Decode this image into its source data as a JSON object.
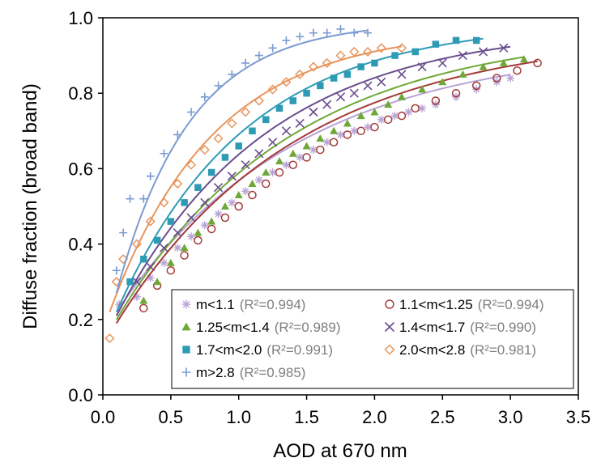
{
  "chart_data": {
    "type": "scatter",
    "title": "",
    "xlabel": "AOD at 670 nm",
    "ylabel": "Diffuse fraction (broad band)",
    "xlim": [
      0.0,
      3.5
    ],
    "ylim": [
      0.0,
      1.0
    ],
    "xticks": [
      "0.0",
      "0.5",
      "1.0",
      "1.5",
      "2.0",
      "2.5",
      "3.0",
      "3.5"
    ],
    "yticks": [
      "0.0",
      "0.2",
      "0.4",
      "0.6",
      "0.8",
      "1.0"
    ],
    "grid": false,
    "legend_position": "bottom-right",
    "series": [
      {
        "name": "m<1.1",
        "r2": "(R²=0.994)",
        "marker": "asterisk",
        "color": "#b8a3d6",
        "fit": {
          "x0": 0.1,
          "x1": 3.0,
          "y0": 0.22,
          "ymax": 0.93,
          "k": 0.75
        },
        "points": [
          [
            0.12,
            0.24
          ],
          [
            0.25,
            0.26
          ],
          [
            0.35,
            0.31
          ],
          [
            0.45,
            0.35
          ],
          [
            0.55,
            0.39
          ],
          [
            0.65,
            0.42
          ],
          [
            0.75,
            0.45
          ],
          [
            0.85,
            0.48
          ],
          [
            0.95,
            0.51
          ],
          [
            1.05,
            0.54
          ],
          [
            1.15,
            0.57
          ],
          [
            1.25,
            0.59
          ],
          [
            1.35,
            0.61
          ],
          [
            1.45,
            0.63
          ],
          [
            1.55,
            0.65
          ],
          [
            1.65,
            0.67
          ],
          [
            1.75,
            0.69
          ],
          [
            1.85,
            0.7
          ],
          [
            1.95,
            0.71
          ],
          [
            2.05,
            0.73
          ],
          [
            2.15,
            0.74
          ],
          [
            2.25,
            0.75
          ],
          [
            2.35,
            0.76
          ],
          [
            2.45,
            0.77
          ],
          [
            2.6,
            0.79
          ],
          [
            2.75,
            0.81
          ],
          [
            2.9,
            0.83
          ],
          [
            3.0,
            0.84
          ]
        ]
      },
      {
        "name": "1.1<m<1.25",
        "r2": "(R²=0.994)",
        "marker": "circle",
        "color": "#a33a37",
        "fit": {
          "x0": 0.1,
          "x1": 3.2,
          "y0": 0.19,
          "ymax": 0.96,
          "k": 0.75
        },
        "points": [
          [
            0.3,
            0.23
          ],
          [
            0.4,
            0.29
          ],
          [
            0.5,
            0.33
          ],
          [
            0.6,
            0.37
          ],
          [
            0.7,
            0.41
          ],
          [
            0.8,
            0.44
          ],
          [
            0.9,
            0.47
          ],
          [
            1.0,
            0.5
          ],
          [
            1.1,
            0.53
          ],
          [
            1.2,
            0.56
          ],
          [
            1.3,
            0.59
          ],
          [
            1.4,
            0.61
          ],
          [
            1.5,
            0.63
          ],
          [
            1.6,
            0.65
          ],
          [
            1.7,
            0.67
          ],
          [
            1.8,
            0.69
          ],
          [
            1.9,
            0.7
          ],
          [
            2.0,
            0.71
          ],
          [
            2.1,
            0.73
          ],
          [
            2.2,
            0.74
          ],
          [
            2.3,
            0.76
          ],
          [
            2.45,
            0.78
          ],
          [
            2.6,
            0.8
          ],
          [
            2.75,
            0.82
          ],
          [
            2.9,
            0.84
          ],
          [
            3.05,
            0.86
          ],
          [
            3.2,
            0.88
          ]
        ]
      },
      {
        "name": "1.25<m<1.4",
        "r2": "(R²=0.989)",
        "marker": "triangle",
        "color": "#6fa838",
        "fit": {
          "x0": 0.1,
          "x1": 3.1,
          "y0": 0.2,
          "ymax": 0.97,
          "k": 0.78
        },
        "points": [
          [
            0.3,
            0.25
          ],
          [
            0.4,
            0.3
          ],
          [
            0.5,
            0.35
          ],
          [
            0.6,
            0.39
          ],
          [
            0.7,
            0.43
          ],
          [
            0.8,
            0.46
          ],
          [
            0.9,
            0.5
          ],
          [
            1.0,
            0.53
          ],
          [
            1.1,
            0.56
          ],
          [
            1.2,
            0.59
          ],
          [
            1.3,
            0.62
          ],
          [
            1.4,
            0.64
          ],
          [
            1.5,
            0.66
          ],
          [
            1.6,
            0.68
          ],
          [
            1.7,
            0.7
          ],
          [
            1.8,
            0.72
          ],
          [
            1.9,
            0.74
          ],
          [
            2.0,
            0.75
          ],
          [
            2.1,
            0.77
          ],
          [
            2.2,
            0.79
          ],
          [
            2.35,
            0.81
          ],
          [
            2.5,
            0.83
          ],
          [
            2.65,
            0.85
          ],
          [
            2.8,
            0.87
          ],
          [
            2.95,
            0.88
          ],
          [
            3.1,
            0.89
          ]
        ]
      },
      {
        "name": "1.4<m<1.7",
        "r2": "(R²=0.990)",
        "marker": "x",
        "color": "#6a4d8e",
        "fit": {
          "x0": 0.1,
          "x1": 3.0,
          "y0": 0.21,
          "ymax": 0.98,
          "k": 0.9
        },
        "points": [
          [
            0.25,
            0.3
          ],
          [
            0.35,
            0.34
          ],
          [
            0.45,
            0.39
          ],
          [
            0.55,
            0.43
          ],
          [
            0.65,
            0.47
          ],
          [
            0.75,
            0.51
          ],
          [
            0.85,
            0.55
          ],
          [
            0.95,
            0.58
          ],
          [
            1.05,
            0.61
          ],
          [
            1.15,
            0.64
          ],
          [
            1.25,
            0.67
          ],
          [
            1.35,
            0.7
          ],
          [
            1.45,
            0.72
          ],
          [
            1.55,
            0.75
          ],
          [
            1.65,
            0.77
          ],
          [
            1.75,
            0.79
          ],
          [
            1.85,
            0.8
          ],
          [
            1.95,
            0.82
          ],
          [
            2.05,
            0.83
          ],
          [
            2.2,
            0.85
          ],
          [
            2.35,
            0.87
          ],
          [
            2.5,
            0.88
          ],
          [
            2.65,
            0.9
          ],
          [
            2.8,
            0.91
          ],
          [
            2.95,
            0.92
          ]
        ]
      },
      {
        "name": "1.7<m<2.0",
        "r2": "(R²=0.991)",
        "marker": "square",
        "color": "#2e9bb5",
        "fit": {
          "x0": 0.1,
          "x1": 2.8,
          "y0": 0.22,
          "ymax": 0.99,
          "k": 1.05
        },
        "points": [
          [
            0.2,
            0.3
          ],
          [
            0.3,
            0.36
          ],
          [
            0.4,
            0.41
          ],
          [
            0.5,
            0.46
          ],
          [
            0.6,
            0.51
          ],
          [
            0.7,
            0.55
          ],
          [
            0.8,
            0.59
          ],
          [
            0.9,
            0.63
          ],
          [
            1.0,
            0.66
          ],
          [
            1.1,
            0.7
          ],
          [
            1.2,
            0.73
          ],
          [
            1.3,
            0.76
          ],
          [
            1.4,
            0.78
          ],
          [
            1.5,
            0.8
          ],
          [
            1.6,
            0.82
          ],
          [
            1.7,
            0.84
          ],
          [
            1.8,
            0.85
          ],
          [
            1.9,
            0.87
          ],
          [
            2.0,
            0.88
          ],
          [
            2.15,
            0.9
          ],
          [
            2.3,
            0.91
          ],
          [
            2.45,
            0.93
          ],
          [
            2.6,
            0.94
          ],
          [
            2.75,
            0.94
          ]
        ]
      },
      {
        "name": "2.0<m<2.8",
        "r2": "(R²=0.981)",
        "marker": "diamond",
        "color": "#e8955c",
        "fit": {
          "x0": 0.05,
          "x1": 2.2,
          "y0": 0.22,
          "ymax": 0.97,
          "k": 1.3
        },
        "points": [
          [
            0.05,
            0.15
          ],
          [
            0.1,
            0.3
          ],
          [
            0.15,
            0.36
          ],
          [
            0.25,
            0.4
          ],
          [
            0.35,
            0.46
          ],
          [
            0.45,
            0.51
          ],
          [
            0.55,
            0.56
          ],
          [
            0.65,
            0.61
          ],
          [
            0.75,
            0.65
          ],
          [
            0.85,
            0.68
          ],
          [
            0.95,
            0.72
          ],
          [
            1.05,
            0.75
          ],
          [
            1.15,
            0.78
          ],
          [
            1.25,
            0.81
          ],
          [
            1.35,
            0.83
          ],
          [
            1.45,
            0.85
          ],
          [
            1.55,
            0.87
          ],
          [
            1.65,
            0.88
          ],
          [
            1.75,
            0.9
          ],
          [
            1.85,
            0.91
          ],
          [
            1.95,
            0.91
          ],
          [
            2.05,
            0.92
          ],
          [
            2.2,
            0.92
          ]
        ]
      },
      {
        "name": "m>2.8",
        "r2": "(R²=0.985)",
        "marker": "plus",
        "color": "#7a9ad2",
        "fit": {
          "x0": 0.1,
          "x1": 1.95,
          "y0": 0.27,
          "ymax": 0.99,
          "k": 1.85
        },
        "points": [
          [
            0.1,
            0.33
          ],
          [
            0.15,
            0.43
          ],
          [
            0.2,
            0.52
          ],
          [
            0.3,
            0.52
          ],
          [
            0.35,
            0.58
          ],
          [
            0.45,
            0.64
          ],
          [
            0.55,
            0.69
          ],
          [
            0.65,
            0.75
          ],
          [
            0.75,
            0.79
          ],
          [
            0.85,
            0.82
          ],
          [
            0.95,
            0.85
          ],
          [
            1.05,
            0.88
          ],
          [
            1.15,
            0.9
          ],
          [
            1.25,
            0.92
          ],
          [
            1.35,
            0.94
          ],
          [
            1.45,
            0.95
          ],
          [
            1.55,
            0.96
          ],
          [
            1.65,
            0.96
          ],
          [
            1.75,
            0.97
          ],
          [
            1.85,
            0.96
          ],
          [
            1.95,
            0.96
          ]
        ]
      }
    ]
  }
}
